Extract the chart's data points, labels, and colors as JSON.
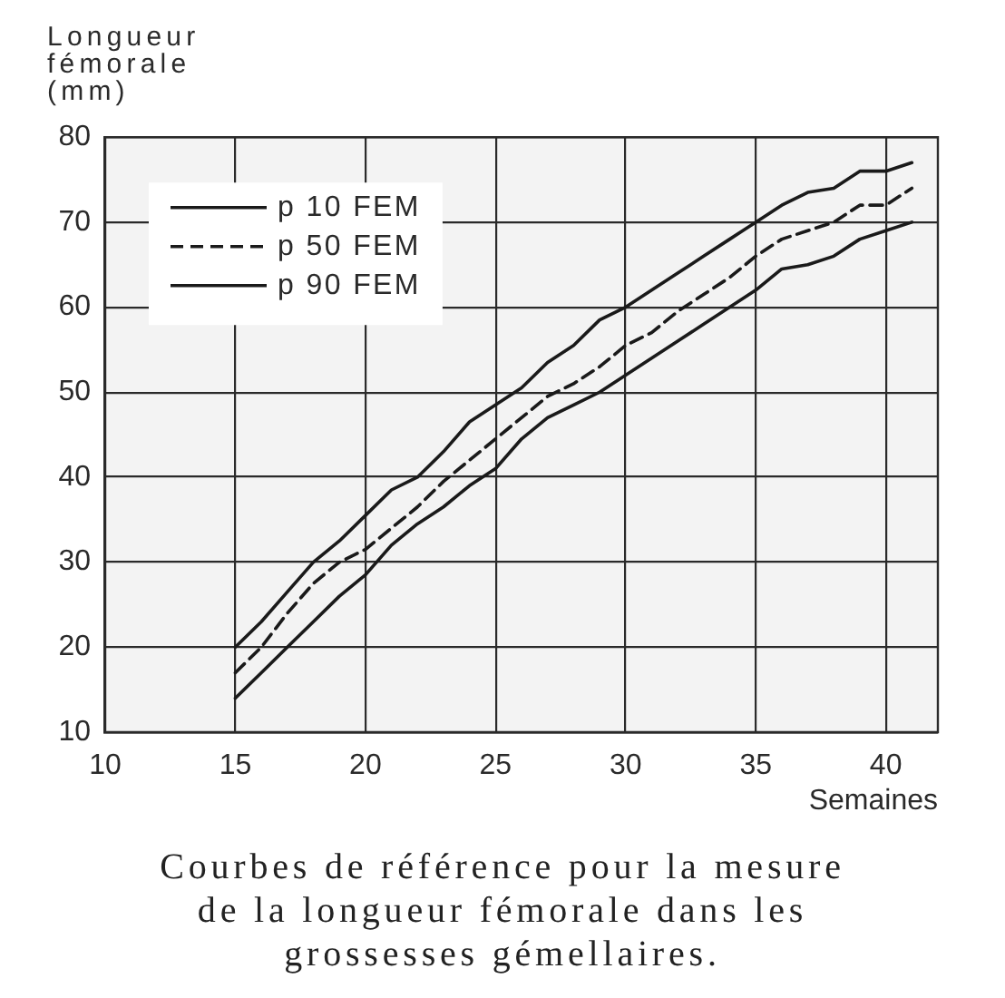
{
  "chart_data": {
    "type": "line",
    "ylabel": "Longueur fémorale (mm)",
    "xlabel": "Semaines",
    "annotations": [
      "Courbes de référence pour la mesure de la longueur fémorale dans les grossesses gémellaires."
    ],
    "x": [
      15,
      16,
      17,
      18,
      19,
      20,
      21,
      22,
      23,
      24,
      25,
      26,
      27,
      28,
      29,
      30,
      31,
      32,
      33,
      34,
      35,
      36,
      37,
      38,
      39,
      40,
      41
    ],
    "series": [
      {
        "name": "p 10 FEM",
        "color": "#1a1a1a",
        "values": [
          14,
          17,
          20,
          23,
          26,
          28.5,
          32,
          34.5,
          36.5,
          39,
          41,
          44.5,
          47,
          48.5,
          50,
          52,
          54,
          56,
          58,
          60,
          62,
          64.5,
          65,
          66,
          68,
          69,
          70
        ]
      },
      {
        "name": "p 50 FEM",
        "color": "#1a1a1a",
        "line_style": "dashed",
        "values": [
          17,
          20,
          24,
          27.5,
          30,
          31.5,
          34,
          36.5,
          39.5,
          42,
          44.5,
          47,
          49.5,
          51,
          53,
          55.5,
          57,
          59.5,
          61.5,
          63.5,
          66,
          68,
          69,
          70,
          72,
          72,
          74
        ]
      },
      {
        "name": "p 90 FEM",
        "color": "#1a1a1a",
        "values": [
          20,
          23,
          26.5,
          30,
          32.5,
          35.5,
          38.5,
          40,
          43,
          46.5,
          48.5,
          50.5,
          53.5,
          55.5,
          58.5,
          60,
          62,
          64,
          66,
          68,
          70,
          72,
          73.5,
          74,
          76,
          76,
          77
        ]
      }
    ],
    "xlim": [
      10,
      42
    ],
    "ylim": [
      10,
      80
    ],
    "xticks": [
      10,
      15,
      20,
      25,
      30,
      35,
      40
    ],
    "yticks": [
      10,
      20,
      30,
      40,
      50,
      60,
      70,
      80
    ],
    "grid": true,
    "legend": "top left",
    "marker": "none",
    "line_style": "solid"
  }
}
